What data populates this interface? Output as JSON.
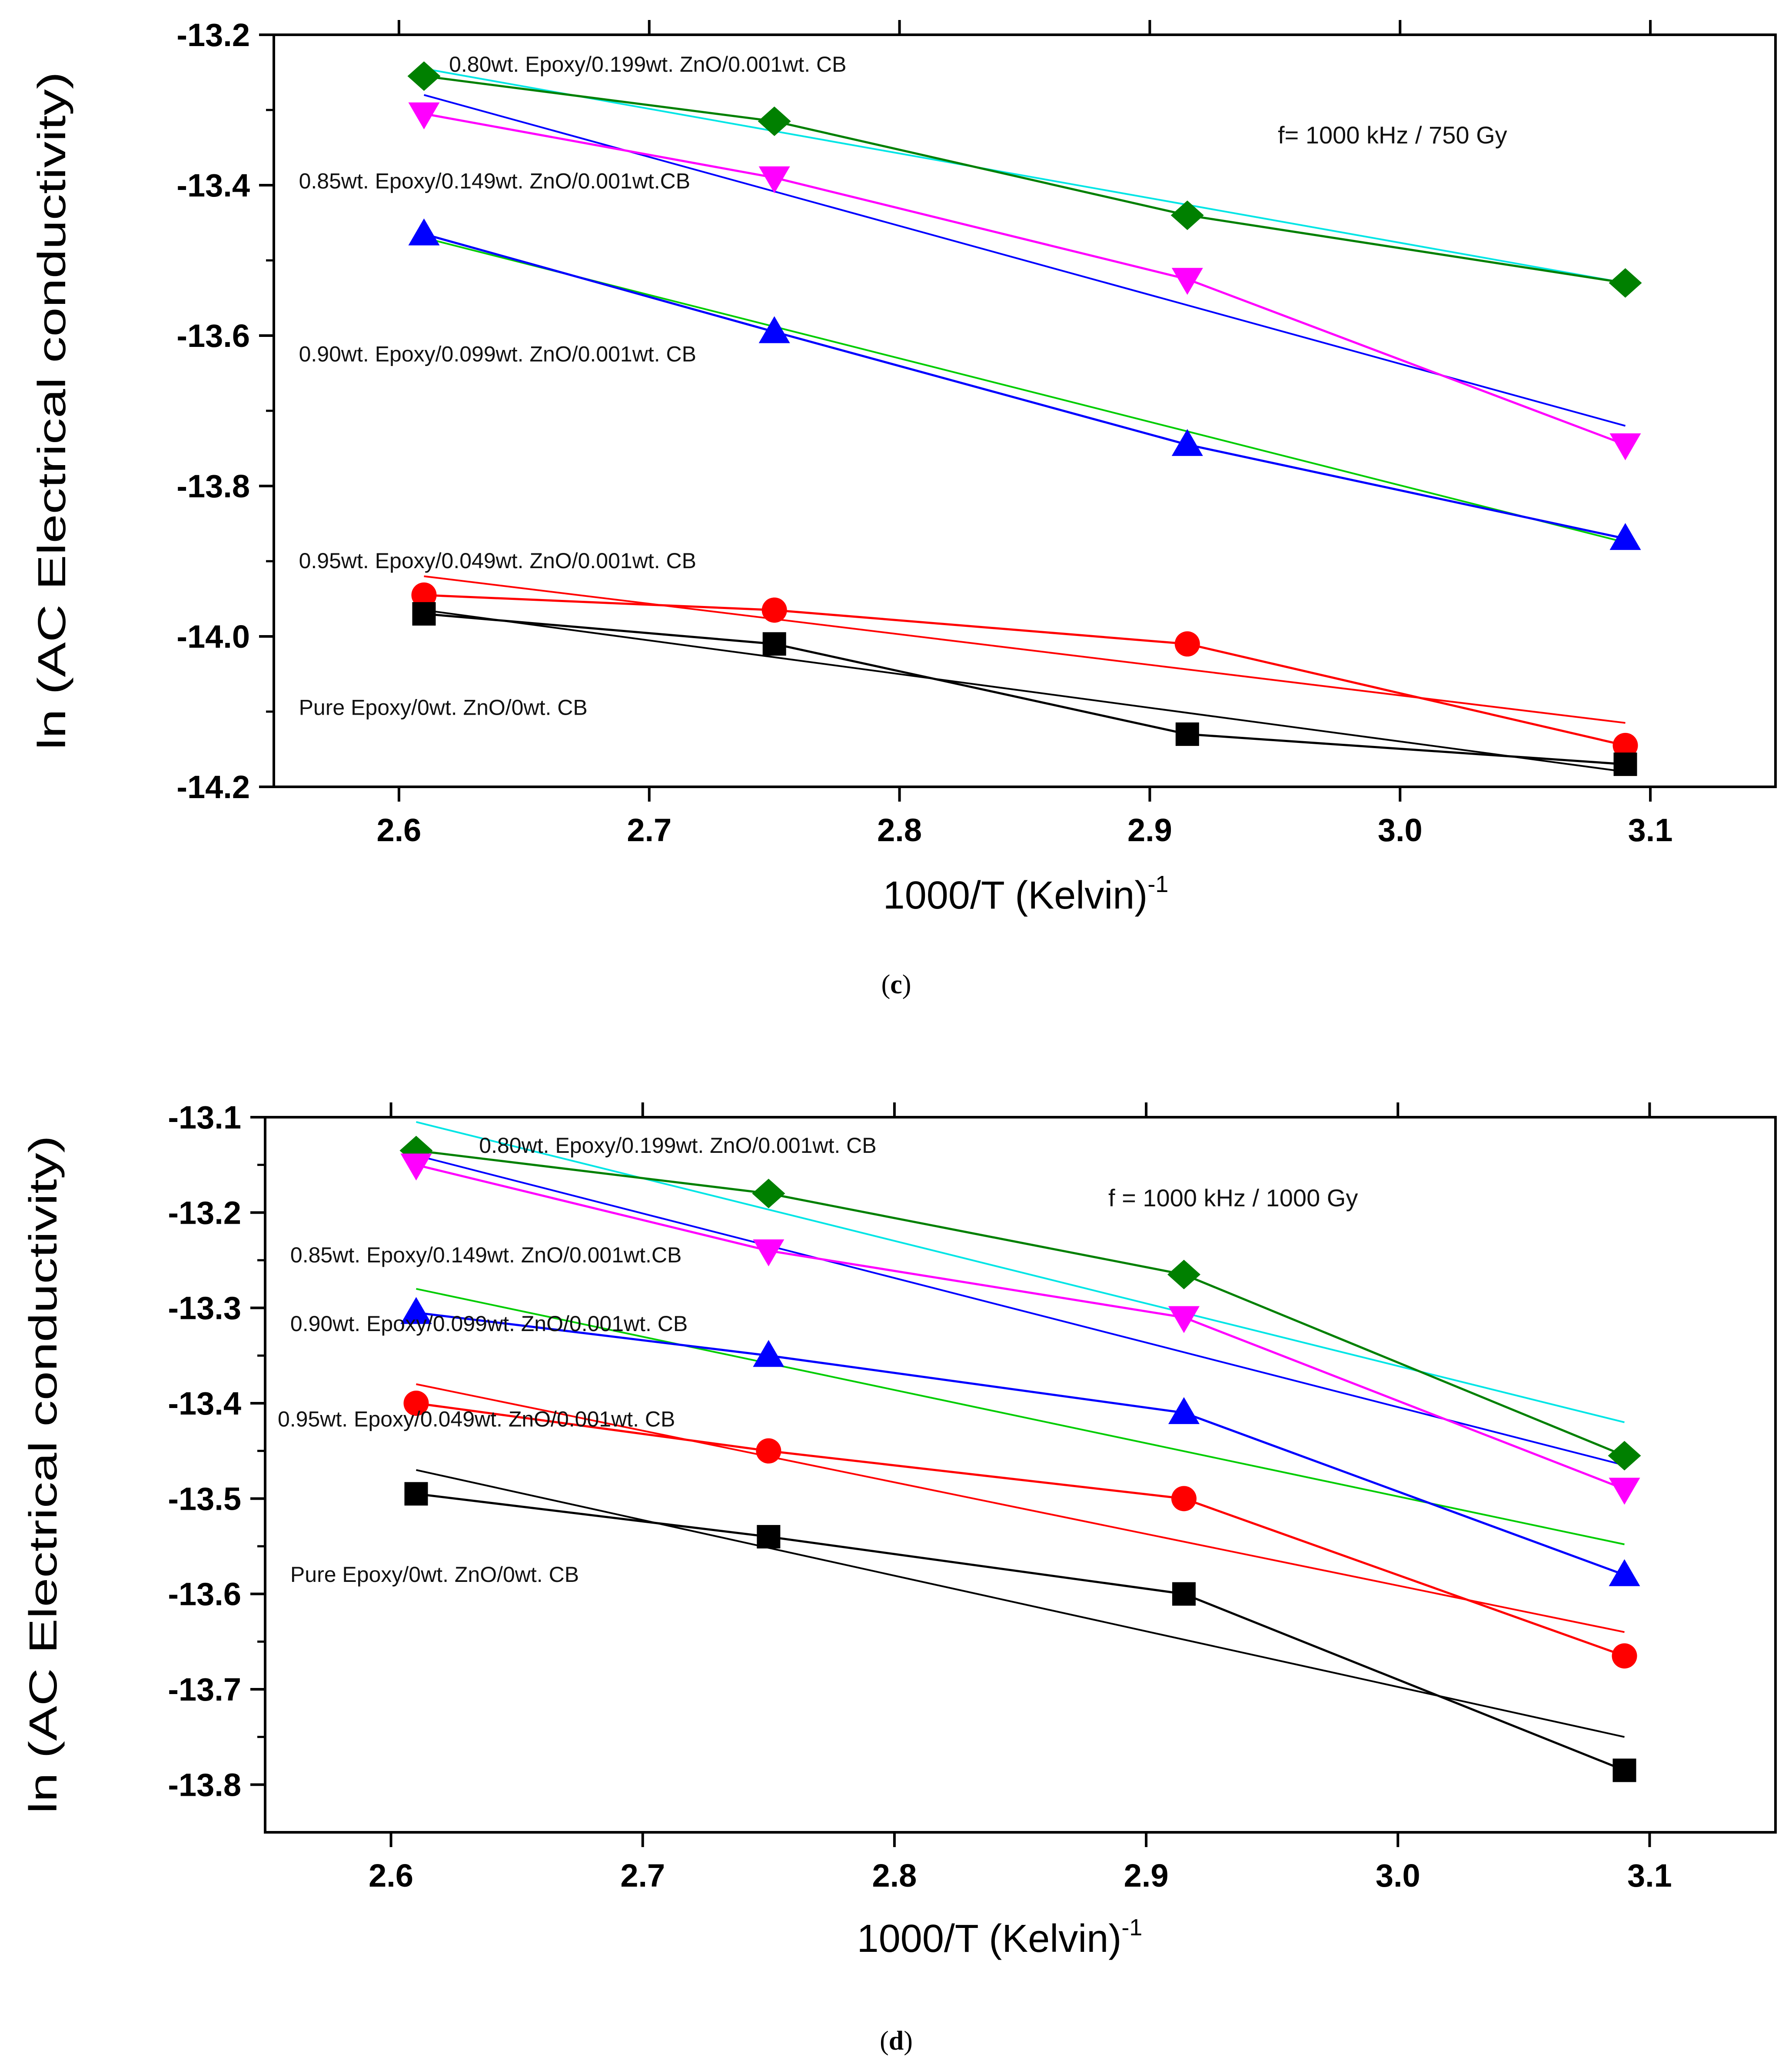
{
  "chart_data": [
    {
      "id": "c",
      "type": "line",
      "panel_label": "c",
      "condition": "f= 1000 kHz / 750 Gy",
      "xlabel": "1000/T (Kelvin)",
      "xlabel_sup": "-1",
      "ylabel": "ln (AC Electrical conductivity)",
      "xlim": [
        2.55,
        3.15
      ],
      "ylim": [
        -14.2,
        -13.2
      ],
      "xticks": [
        2.6,
        2.7,
        2.8,
        2.9,
        3.0,
        3.1
      ],
      "xtick_labels": [
        "2.6",
        "2.7",
        "2.8",
        "2.9",
        "3.0",
        "3.1"
      ],
      "yticks": [
        -14.2,
        -14.0,
        -13.8,
        -13.6,
        -13.4,
        -13.2
      ],
      "ytick_labels": [
        "-14.2",
        "-14.0",
        "-13.8",
        "-13.6",
        "-13.4",
        "-13.2"
      ],
      "annotations": [
        {
          "text": "0.80wt. Epoxy/0.199wt. ZnO/0.001wt. CB",
          "x": 2.62,
          "y": -13.24
        },
        {
          "text": "0.85wt. Epoxy/0.149wt. ZnO/0.001wt.CB",
          "x": 2.56,
          "y": -13.395
        },
        {
          "text": "0.90wt. Epoxy/0.099wt. ZnO/0.001wt. CB",
          "x": 2.56,
          "y": -13.625
        },
        {
          "text": "0.95wt. Epoxy/0.049wt. ZnO/0.001wt. CB",
          "x": 2.56,
          "y": -13.9
        },
        {
          "text": "Pure Epoxy/0wt. ZnO/0wt. CB",
          "x": 2.56,
          "y": -14.095
        }
      ],
      "series": [
        {
          "name": "0.80wt. Epoxy/0.199wt. ZnO/0.001wt. CB",
          "marker": "diamond",
          "color": "#008000",
          "fit_color": "#00e5e5",
          "x": [
            2.61,
            2.75,
            2.915,
            3.09
          ],
          "y": [
            -13.255,
            -13.315,
            -13.44,
            -13.53
          ],
          "fit": [
            [
              2.61,
              -13.245
            ],
            [
              3.09,
              -13.53
            ]
          ]
        },
        {
          "name": "0.85wt. Epoxy/0.149wt. ZnO/0.001wt.CB",
          "marker": "triangle-down",
          "color": "#ff00ff",
          "fit_color": "#0000ff",
          "x": [
            2.61,
            2.75,
            2.915,
            3.09
          ],
          "y": [
            -13.305,
            -13.39,
            -13.525,
            -13.745
          ],
          "fit": [
            [
              2.61,
              -13.28
            ],
            [
              3.09,
              -13.72
            ]
          ]
        },
        {
          "name": "0.90wt. Epoxy/0.099wt. ZnO/0.001wt. CB",
          "marker": "triangle-up",
          "color": "#0000ff",
          "fit_color": "#00cc00",
          "x": [
            2.61,
            2.75,
            2.915,
            3.09
          ],
          "y": [
            -13.465,
            -13.595,
            -13.745,
            -13.87
          ],
          "fit": [
            [
              2.61,
              -13.47
            ],
            [
              3.09,
              -13.875
            ]
          ]
        },
        {
          "name": "0.95wt. Epoxy/0.049wt. ZnO/0.001wt. CB",
          "marker": "circle",
          "color": "#ff0000",
          "fit_color": "#ff0000",
          "x": [
            2.61,
            2.75,
            2.915,
            3.09
          ],
          "y": [
            -13.945,
            -13.965,
            -14.01,
            -14.145
          ],
          "fit": [
            [
              2.61,
              -13.92
            ],
            [
              3.09,
              -14.115
            ]
          ]
        },
        {
          "name": "Pure Epoxy/0wt. ZnO/0wt. CB",
          "marker": "square",
          "color": "#000000",
          "fit_color": "#000000",
          "x": [
            2.61,
            2.75,
            2.915,
            3.09
          ],
          "y": [
            -13.97,
            -14.01,
            -14.13,
            -14.17
          ],
          "fit": [
            [
              2.61,
              -13.965
            ],
            [
              3.09,
              -14.18
            ]
          ]
        }
      ]
    },
    {
      "id": "d",
      "type": "line",
      "panel_label": "d",
      "condition": "f = 1000 kHz / 1000 Gy",
      "xlabel": "1000/T (Kelvin)",
      "xlabel_sup": "-1",
      "ylabel": "ln (AC Electrical conductivity)",
      "xlim": [
        2.55,
        3.15
      ],
      "ylim": [
        -13.85,
        -13.1
      ],
      "xticks": [
        2.6,
        2.7,
        2.8,
        2.9,
        3.0,
        3.1
      ],
      "xtick_labels": [
        "2.6",
        "2.7",
        "2.8",
        "2.9",
        "3.0",
        "3.1"
      ],
      "yticks": [
        -13.8,
        -13.7,
        -13.6,
        -13.5,
        -13.4,
        -13.3,
        -13.2,
        -13.1
      ],
      "ytick_labels": [
        "-13.8",
        "-13.7",
        "-13.6",
        "-13.5",
        "-13.4",
        "-13.3",
        "-13.2",
        "-13.1"
      ],
      "annotations": [
        {
          "text": "0.80wt. Epoxy/0.199wt. ZnO/0.001wt. CB",
          "x": 2.635,
          "y": -13.13
        },
        {
          "text": "0.85wt. Epoxy/0.149wt. ZnO/0.001wt.CB",
          "x": 2.56,
          "y": -13.245
        },
        {
          "text": "0.90wt. Epoxy/0.099wt. ZnO/0.001wt. CB",
          "x": 2.56,
          "y": -13.317
        },
        {
          "text": "0.95wt. Epoxy/0.049wt. ZnO/0.001wt. CB",
          "x": 2.555,
          "y": -13.417
        },
        {
          "text": "Pure Epoxy/0wt. ZnO/0wt. CB",
          "x": 2.56,
          "y": -13.58
        }
      ],
      "series": [
        {
          "name": "0.80wt. Epoxy/0.199wt. ZnO/0.001wt. CB",
          "marker": "diamond",
          "color": "#008000",
          "fit_color": "#00e5e5",
          "x": [
            2.61,
            2.75,
            2.915,
            3.09
          ],
          "y": [
            -13.135,
            -13.18,
            -13.265,
            -13.455
          ],
          "fit": [
            [
              2.61,
              -13.105
            ],
            [
              3.09,
              -13.42
            ]
          ]
        },
        {
          "name": "0.85wt. Epoxy/0.149wt. ZnO/0.001wt.CB",
          "marker": "triangle-down",
          "color": "#ff00ff",
          "fit_color": "#0000ff",
          "x": [
            2.61,
            2.75,
            2.915,
            3.09
          ],
          "y": [
            -13.15,
            -13.24,
            -13.31,
            -13.49
          ],
          "fit": [
            [
              2.61,
              -13.14
            ],
            [
              3.09,
              -13.465
            ]
          ]
        },
        {
          "name": "0.90wt. Epoxy/0.099wt. ZnO/0.001wt. CB",
          "marker": "triangle-up",
          "color": "#0000ff",
          "fit_color": "#00cc00",
          "x": [
            2.61,
            2.75,
            2.915,
            3.09
          ],
          "y": [
            -13.305,
            -13.35,
            -13.41,
            -13.58
          ],
          "fit": [
            [
              2.61,
              -13.28
            ],
            [
              3.09,
              -13.548
            ]
          ]
        },
        {
          "name": "0.95wt. Epoxy/0.049wt. ZnO/0.001wt. CB",
          "marker": "circle",
          "color": "#ff0000",
          "fit_color": "#ff0000",
          "x": [
            2.61,
            2.75,
            2.915,
            3.09
          ],
          "y": [
            -13.4,
            -13.45,
            -13.5,
            -13.665
          ],
          "fit": [
            [
              2.61,
              -13.38
            ],
            [
              3.09,
              -13.64
            ]
          ]
        },
        {
          "name": "Pure Epoxy/0wt. ZnO/0wt. CB",
          "marker": "square",
          "color": "#000000",
          "fit_color": "#000000",
          "x": [
            2.61,
            2.75,
            2.915,
            3.09
          ],
          "y": [
            -13.495,
            -13.54,
            -13.6,
            -13.785
          ],
          "fit": [
            [
              2.61,
              -13.47
            ],
            [
              3.09,
              -13.75
            ]
          ]
        }
      ]
    }
  ]
}
